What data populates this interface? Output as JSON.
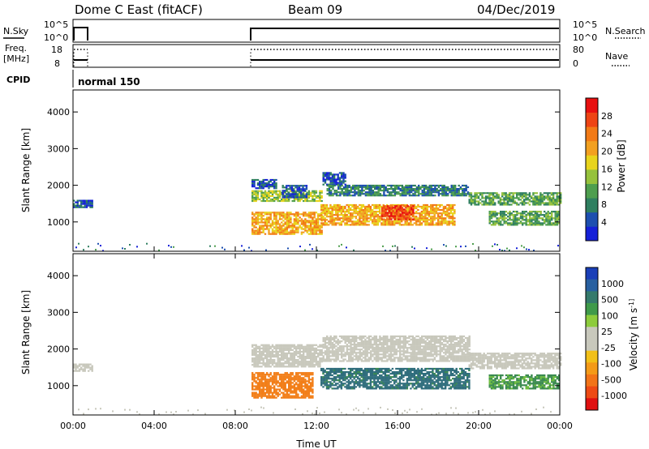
{
  "header": {
    "station": "Dome C East (fitACF)",
    "beam": "Beam 09",
    "date": "04/Dec/2019"
  },
  "panels": {
    "nsky": {
      "left_label": "N.Sky",
      "right_label": "N.Search",
      "left_ticks": [
        "10^5",
        "10^0"
      ],
      "right_ticks": [
        "10^5",
        "10^0"
      ]
    },
    "freq": {
      "left_label_1": "Freq.",
      "left_label_2": "[MHz]",
      "right_label": "Nave",
      "left_ticks": [
        "18",
        "8"
      ],
      "right_ticks": [
        "80",
        "0"
      ]
    },
    "cpid": {
      "label": "CPID",
      "value": "normal 150"
    }
  },
  "chart_data": [
    {
      "type": "heatmap",
      "name": "power",
      "ylabel": "Slant Range [km]",
      "xlabel": "",
      "ylim": [
        200,
        4600
      ],
      "yticks": [
        "4000",
        "3000",
        "2000",
        "1000"
      ],
      "colorbar": {
        "label": "Power [dB]",
        "ticks": [
          "28",
          "24",
          "20",
          "16",
          "12",
          "8",
          "4"
        ],
        "colors": [
          "#1520d8",
          "#1d4fb0",
          "#2f7f60",
          "#4e9e4e",
          "#96c23c",
          "#e8d41c",
          "#f2a020",
          "#f27a16",
          "#ee4414",
          "#e81010"
        ]
      },
      "echo_regions": [
        {
          "t": [
            0.0,
            0.9
          ],
          "r": [
            1380,
            1580
          ],
          "level": 1
        },
        {
          "t": [
            8.8,
            12.3
          ],
          "r": [
            1550,
            1850
          ],
          "level": 4
        },
        {
          "t": [
            8.8,
            12.3
          ],
          "r": [
            650,
            1250
          ],
          "level": 6
        },
        {
          "t": [
            8.8,
            10.0
          ],
          "r": [
            1900,
            2150
          ],
          "level": 1
        },
        {
          "t": [
            10.3,
            11.5
          ],
          "r": [
            1650,
            2000
          ],
          "level": 1
        },
        {
          "t": [
            12.3,
            13.4
          ],
          "r": [
            2000,
            2350
          ],
          "level": 1
        },
        {
          "t": [
            12.5,
            19.5
          ],
          "r": [
            1700,
            2000
          ],
          "level": 2
        },
        {
          "t": [
            12.2,
            18.8
          ],
          "r": [
            900,
            1450
          ],
          "level": 6
        },
        {
          "t": [
            15.2,
            16.8
          ],
          "r": [
            1050,
            1450
          ],
          "level": 8
        },
        {
          "t": [
            19.5,
            24.0
          ],
          "r": [
            1450,
            1800
          ],
          "level": 3
        },
        {
          "t": [
            20.5,
            24.0
          ],
          "r": [
            900,
            1300
          ],
          "level": 3
        }
      ]
    },
    {
      "type": "heatmap",
      "name": "velocity",
      "ylabel": "Slant Range [km]",
      "xlabel": "Time UT",
      "ylim": [
        200,
        4600
      ],
      "yticks": [
        "4000",
        "3000",
        "2000",
        "1000"
      ],
      "xticks": [
        "00:00",
        "04:00",
        "08:00",
        "12:00",
        "16:00",
        "20:00",
        "00:00"
      ],
      "xlim": [
        0,
        24
      ],
      "colorbar": {
        "label": "Velocity [m s^-1]",
        "ticks": [
          "1000",
          "500",
          "100",
          "25",
          "-25",
          "-100",
          "-500",
          "-1000"
        ],
        "colors": [
          "#1a3fb8",
          "#2860a0",
          "#357a6c",
          "#3f9a4a",
          "#8dcc3c",
          "#c8c8bc",
          "#c8c8bc",
          "#f2c018",
          "#f49a18",
          "#f27418",
          "#ee4a14",
          "#e01010"
        ]
      },
      "echo_regions": [
        {
          "t": [
            0.0,
            0.9
          ],
          "r": [
            1380,
            1580
          ],
          "v": 0
        },
        {
          "t": [
            8.8,
            12.3
          ],
          "r": [
            1500,
            2100
          ],
          "v": 0
        },
        {
          "t": [
            8.8,
            11.8
          ],
          "r": [
            650,
            1350
          ],
          "v": -200
        },
        {
          "t": [
            12.3,
            19.5
          ],
          "r": [
            1650,
            2350
          ],
          "v": 0
        },
        {
          "t": [
            12.2,
            19.5
          ],
          "r": [
            900,
            1450
          ],
          "v": 150
        },
        {
          "t": [
            19.5,
            24.0
          ],
          "r": [
            1450,
            1900
          ],
          "v": 0
        },
        {
          "t": [
            20.5,
            24.0
          ],
          "r": [
            900,
            1300
          ],
          "v": 60
        }
      ]
    }
  ]
}
